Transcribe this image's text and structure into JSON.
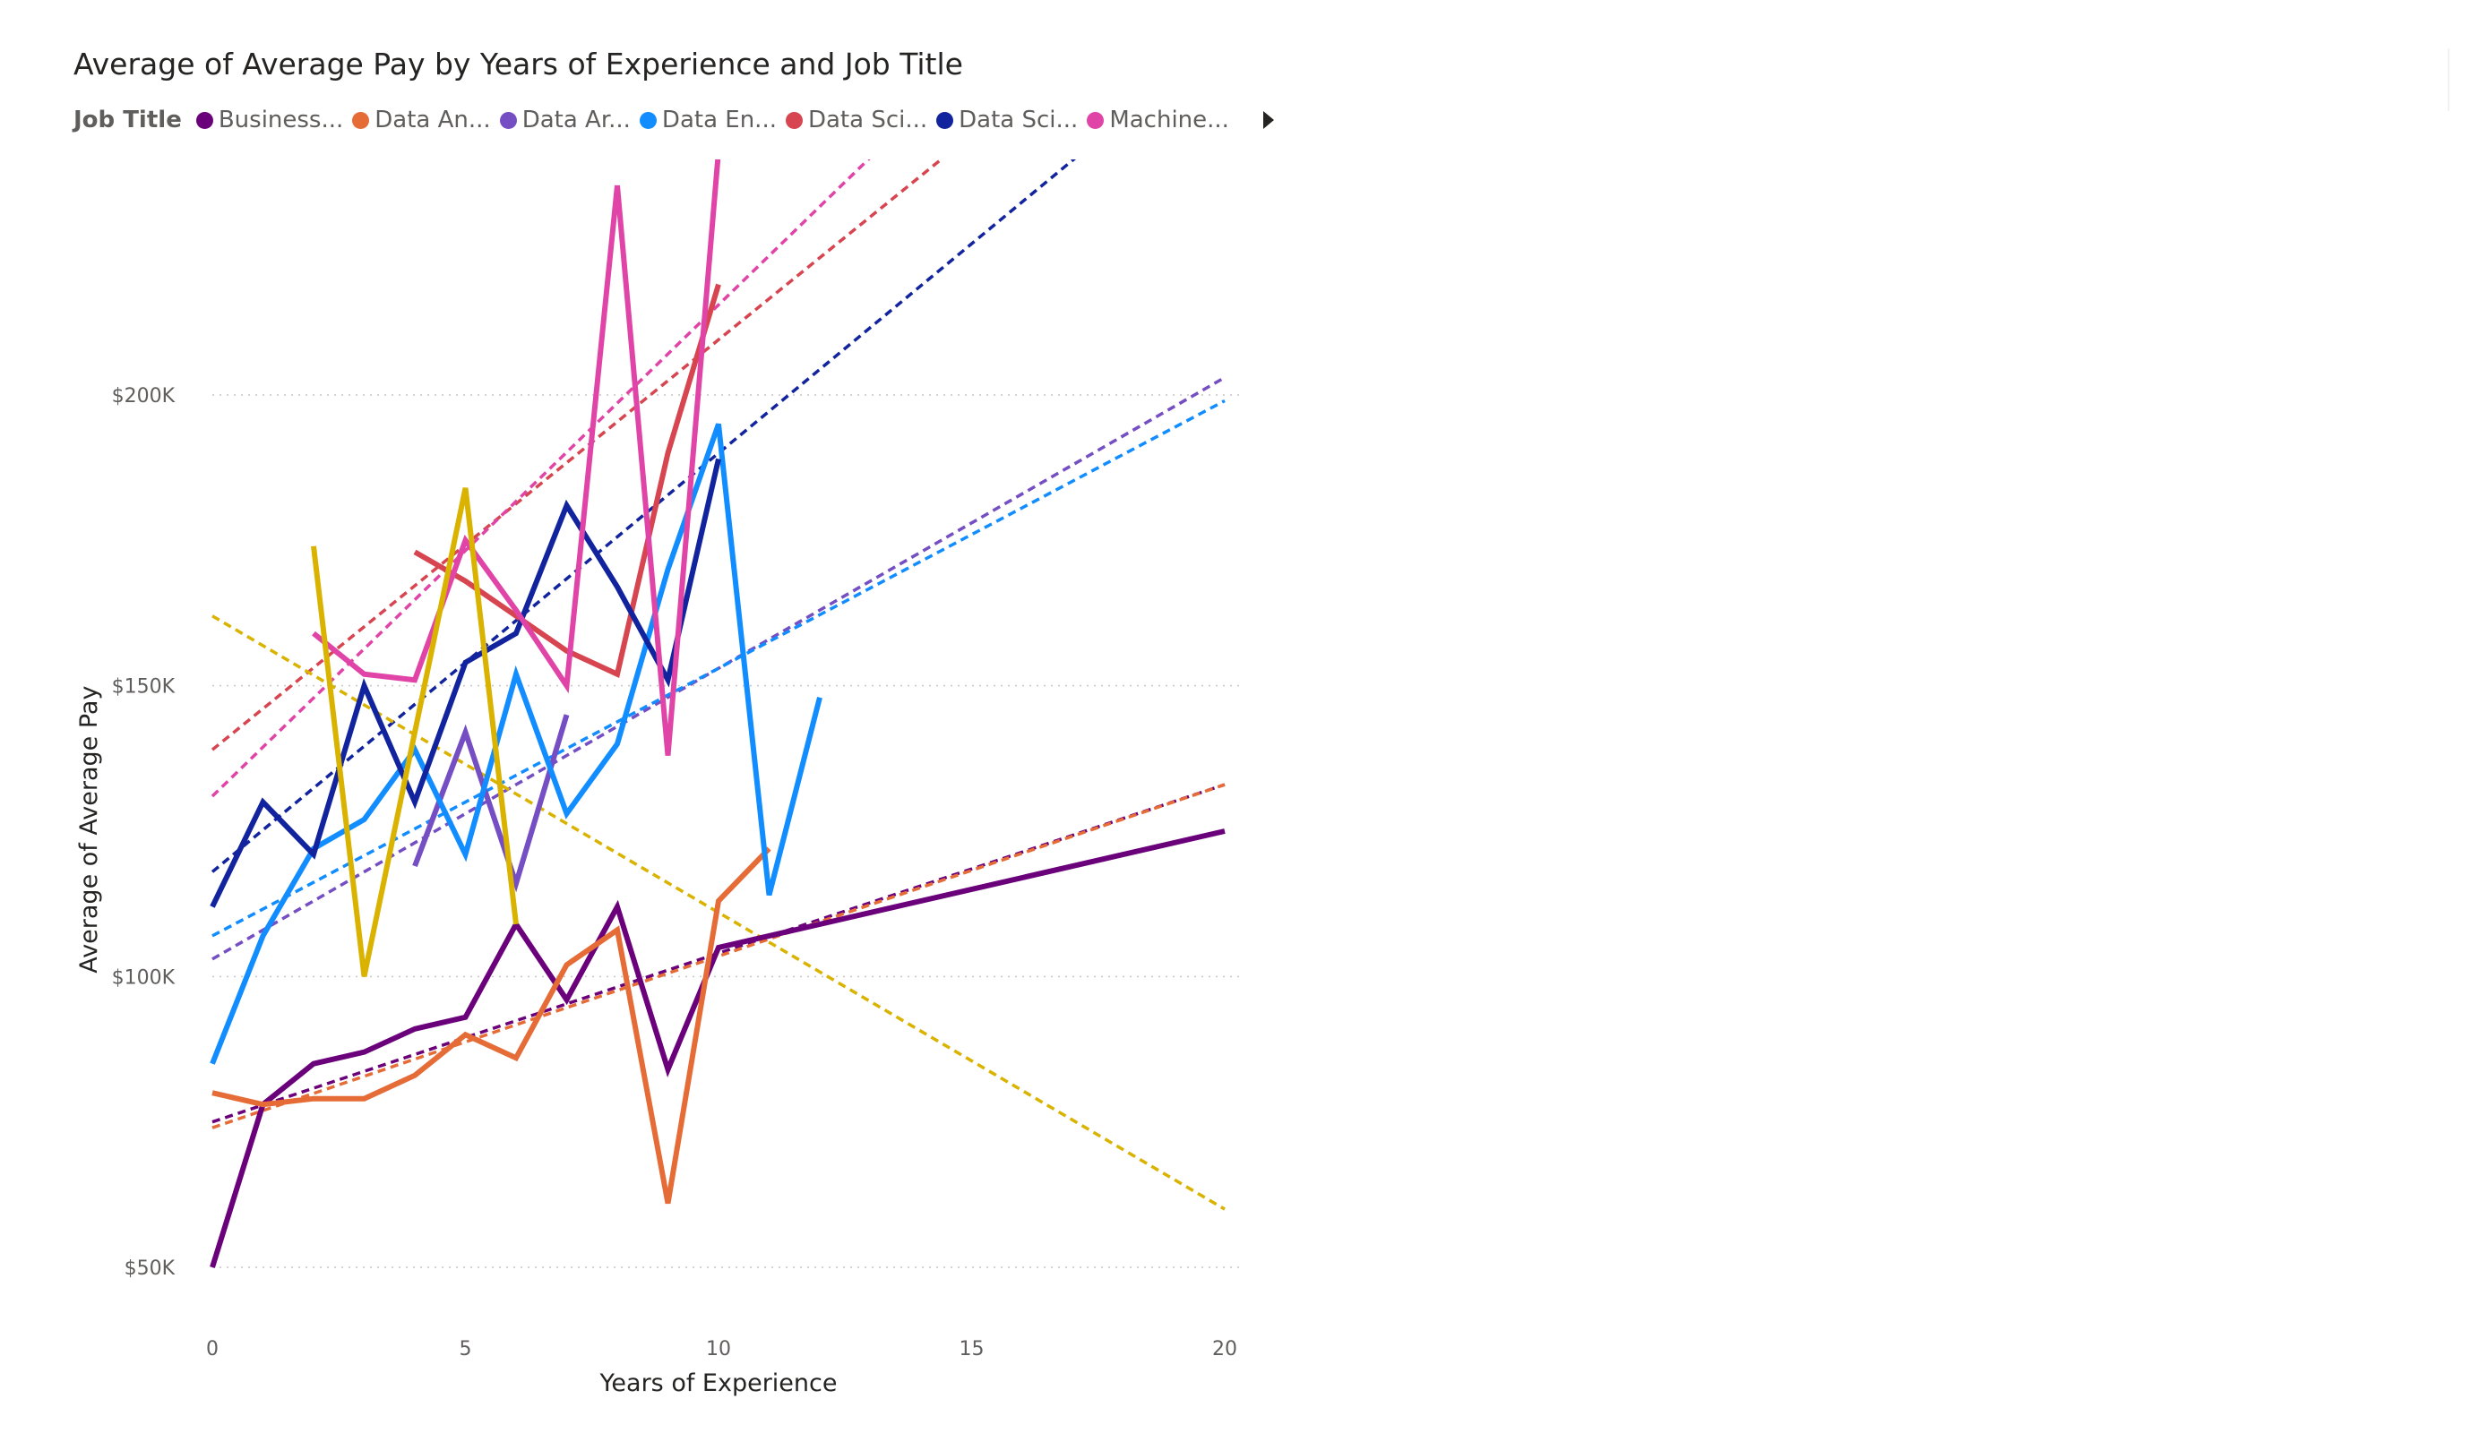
{
  "chart_data": {
    "type": "line",
    "title": "Average of Average Pay by Years of Experience and Job Title",
    "xlabel": "Years of Experience",
    "ylabel": "Average of Average Pay",
    "xlim": [
      0,
      20
    ],
    "ylim": [
      40000,
      240000
    ],
    "xticks": [
      0,
      5,
      10,
      15,
      20
    ],
    "yticks": [
      50000,
      100000,
      150000,
      200000
    ],
    "xtick_labels": [
      "0",
      "5",
      "10",
      "15",
      "20"
    ],
    "ytick_labels": [
      "$50K",
      "$100K",
      "$150K",
      "$200K"
    ],
    "grid": "horizontal dotted",
    "legend_title": "Job Title",
    "legend_position": "top-left",
    "series": [
      {
        "name": "Business...",
        "color": "#6B007B",
        "x": [
          0,
          1,
          2,
          3,
          4,
          5,
          6,
          7,
          8,
          9,
          10,
          20
        ],
        "y": [
          50000,
          78000,
          85000,
          87000,
          91000,
          93000,
          109000,
          96000,
          112000,
          84000,
          105000,
          125000
        ],
        "trend": [
          75000,
          133000
        ]
      },
      {
        "name": "Data An...",
        "color": "#E66C37",
        "x": [
          0,
          1,
          2,
          3,
          4,
          5,
          6,
          7,
          8,
          9,
          10,
          11
        ],
        "y": [
          80000,
          78000,
          79000,
          79000,
          83000,
          90000,
          86000,
          102000,
          108000,
          61000,
          113000,
          122000
        ],
        "trend": [
          74000,
          133000
        ]
      },
      {
        "name": "Data Ar...",
        "color": "#744EC2",
        "x": [
          4,
          5,
          6,
          7
        ],
        "y": [
          119000,
          142000,
          116000,
          145000
        ],
        "trend": [
          103000,
          203000
        ]
      },
      {
        "name": "Data En...",
        "color": "#118DFF",
        "x": [
          0,
          1,
          2,
          3,
          4,
          5,
          6,
          7,
          8,
          9,
          10,
          11,
          12
        ],
        "y": [
          85000,
          107000,
          122000,
          127000,
          139000,
          121000,
          152000,
          128000,
          140000,
          170000,
          195000,
          114000,
          148000
        ],
        "trend": [
          107000,
          199000
        ]
      },
      {
        "name": "Data Sci...",
        "color": "#D64550",
        "x": [
          4,
          5,
          6,
          7,
          8,
          9,
          10
        ],
        "y": [
          173000,
          168000,
          162000,
          156000,
          152000,
          190000,
          219000
        ],
        "trend": [
          139000,
          280000
        ]
      },
      {
        "name": "Data Sci...",
        "color": "#12239E",
        "x": [
          0,
          1,
          2,
          3,
          4,
          5,
          6,
          7,
          8,
          9,
          10
        ],
        "y": [
          112000,
          130000,
          121000,
          150000,
          130000,
          154000,
          159000,
          181000,
          167000,
          151000,
          189000
        ],
        "trend": [
          118000,
          262000
        ]
      },
      {
        "name": "Machine...",
        "color": "#E044A7",
        "x": [
          2,
          3,
          4,
          5,
          6,
          7,
          8,
          9,
          10
        ],
        "y": [
          159000,
          152000,
          151000,
          175000,
          163000,
          150000,
          236000,
          138000,
          242000
        ],
        "trend": [
          131000,
          300000
        ]
      },
      {
        "name": "",
        "color": "#D9B300",
        "x": [
          2,
          3,
          4,
          5,
          6
        ],
        "y": [
          174000,
          100000,
          142000,
          184000,
          109000
        ],
        "trend": [
          162000,
          60000
        ]
      }
    ]
  }
}
